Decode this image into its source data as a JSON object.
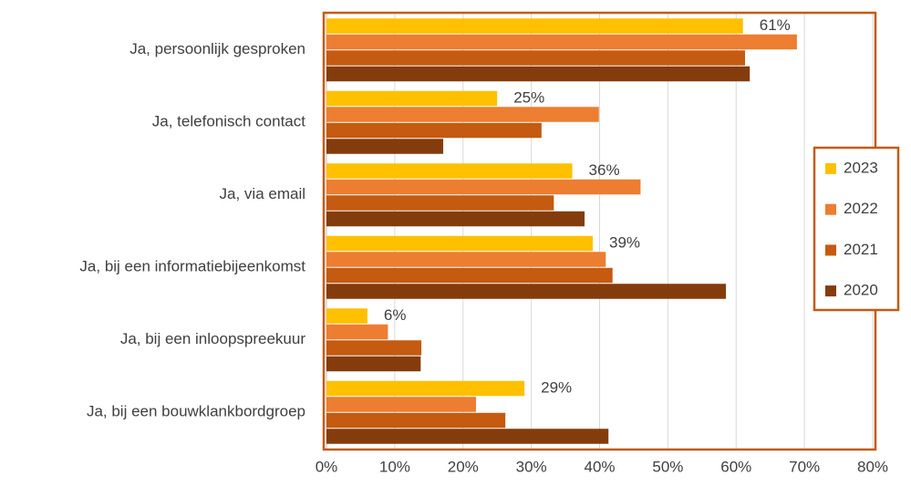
{
  "chart_data": {
    "type": "bar",
    "orientation": "horizontal",
    "categories": [
      "Ja, persoonlijk gesproken",
      "Ja, telefonisch contact",
      "Ja, via email",
      "Ja, bij een informatiebijeenkomst",
      "Ja, bij een inloopspreekuur",
      "Ja, bij een bouwklankbordgroep"
    ],
    "series": [
      {
        "name": "2023",
        "color": "#ffc000",
        "values": [
          61,
          25,
          36,
          39,
          6,
          29
        ],
        "value_labels": [
          "61%",
          "25%",
          "36%",
          "39%",
          "6%",
          "29%"
        ]
      },
      {
        "name": "2022",
        "color": "#ed7d31",
        "values": [
          68.9,
          39.9,
          46,
          40.9,
          9,
          21.9
        ]
      },
      {
        "name": "2021",
        "color": "#c55a11",
        "values": [
          61.3,
          31.5,
          33.3,
          41.9,
          13.9,
          26.2
        ]
      },
      {
        "name": "2020",
        "color": "#843c0c",
        "values": [
          62,
          17.1,
          37.8,
          58.5,
          13.8,
          41.3
        ]
      }
    ],
    "xlim": [
      0,
      80
    ],
    "xticks": [
      {
        "value": 0,
        "label": "0%"
      },
      {
        "value": 10,
        "label": "10%"
      },
      {
        "value": 20,
        "label": "20%"
      },
      {
        "value": 30,
        "label": "30%"
      },
      {
        "value": 40,
        "label": "40%"
      },
      {
        "value": 50,
        "label": "50%"
      },
      {
        "value": 60,
        "label": "60%"
      },
      {
        "value": 70,
        "label": "70%"
      },
      {
        "value": 80,
        "label": "80%"
      }
    ],
    "grid": true,
    "legend": "right"
  }
}
